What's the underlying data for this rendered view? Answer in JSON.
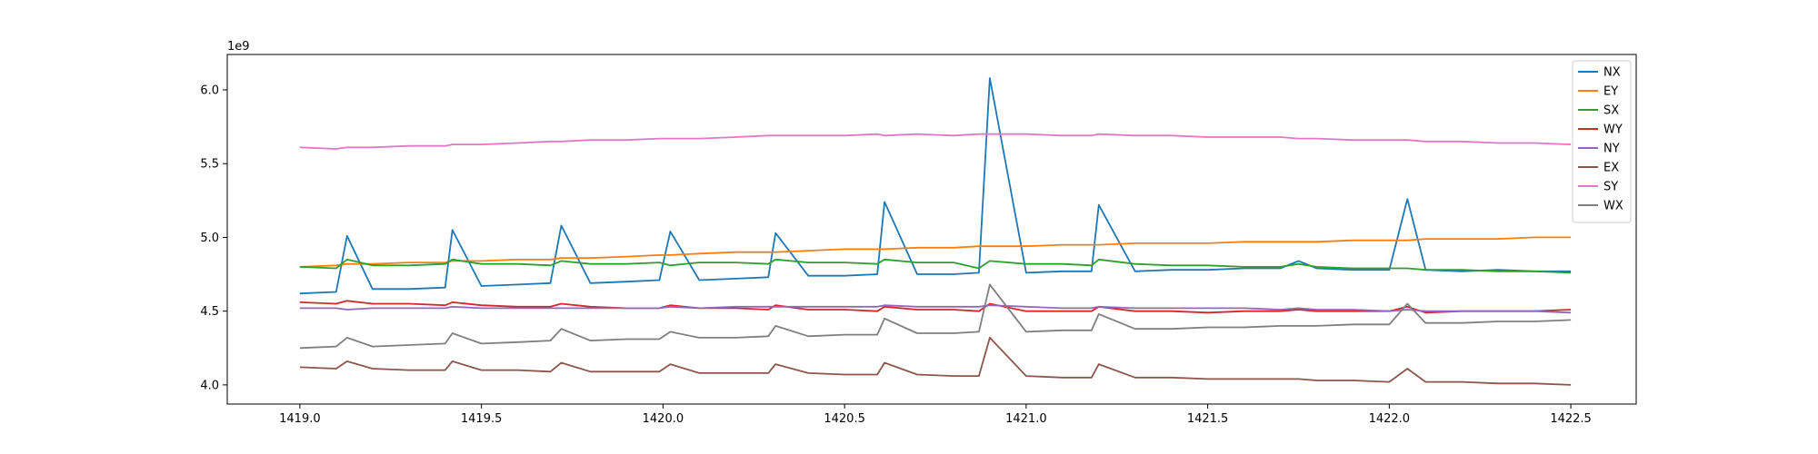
{
  "chart_data": {
    "type": "line",
    "title": "",
    "xlabel": "",
    "ylabel": "",
    "y_offset_label": "1e9",
    "xlim": [
      1418.8,
      1422.68
    ],
    "ylim": [
      3.87,
      6.24
    ],
    "grid": false,
    "legend_position": "top-right",
    "x_ticks": [
      "1419.0",
      "1419.5",
      "1420.0",
      "1420.5",
      "1421.0",
      "1421.5",
      "1422.0",
      "1422.5"
    ],
    "y_ticks": [
      "4.0",
      "4.5",
      "5.0",
      "5.5",
      "6.0"
    ],
    "x": [
      1419.0,
      1419.1,
      1419.13,
      1419.2,
      1419.3,
      1419.4,
      1419.42,
      1419.5,
      1419.6,
      1419.69,
      1419.72,
      1419.8,
      1419.9,
      1419.99,
      1420.02,
      1420.1,
      1420.2,
      1420.29,
      1420.31,
      1420.4,
      1420.5,
      1420.59,
      1420.61,
      1420.7,
      1420.8,
      1420.87,
      1420.9,
      1421.0,
      1421.1,
      1421.18,
      1421.2,
      1421.3,
      1421.4,
      1421.5,
      1421.6,
      1421.7,
      1421.75,
      1421.8,
      1421.9,
      1422.0,
      1422.05,
      1422.1,
      1422.2,
      1422.3,
      1422.4,
      1422.5
    ],
    "series": [
      {
        "name": "NX",
        "color": "#1f77b4",
        "values": [
          4.62,
          4.63,
          5.01,
          4.65,
          4.65,
          4.66,
          5.05,
          4.67,
          4.68,
          4.69,
          5.08,
          4.69,
          4.7,
          4.71,
          5.04,
          4.71,
          4.72,
          4.73,
          5.03,
          4.74,
          4.74,
          4.75,
          5.24,
          4.75,
          4.75,
          4.76,
          6.08,
          4.76,
          4.77,
          4.77,
          5.22,
          4.77,
          4.78,
          4.78,
          4.79,
          4.79,
          4.84,
          4.79,
          4.78,
          4.78,
          5.26,
          4.78,
          4.77,
          4.78,
          4.77,
          4.77
        ]
      },
      {
        "name": "EY",
        "color": "#ff7f0e",
        "values": [
          4.8,
          4.81,
          4.82,
          4.82,
          4.83,
          4.83,
          4.84,
          4.84,
          4.85,
          4.85,
          4.86,
          4.86,
          4.87,
          4.88,
          4.88,
          4.89,
          4.9,
          4.9,
          4.9,
          4.91,
          4.92,
          4.92,
          4.92,
          4.93,
          4.93,
          4.94,
          4.94,
          4.94,
          4.95,
          4.95,
          4.95,
          4.96,
          4.96,
          4.96,
          4.97,
          4.97,
          4.97,
          4.97,
          4.98,
          4.98,
          4.98,
          4.99,
          4.99,
          4.99,
          5.0,
          5.0
        ]
      },
      {
        "name": "SX",
        "color": "#2ca02c",
        "values": [
          4.8,
          4.79,
          4.85,
          4.81,
          4.81,
          4.82,
          4.85,
          4.82,
          4.82,
          4.81,
          4.84,
          4.82,
          4.82,
          4.83,
          4.81,
          4.83,
          4.83,
          4.82,
          4.85,
          4.83,
          4.83,
          4.82,
          4.85,
          4.83,
          4.83,
          4.79,
          4.84,
          4.82,
          4.82,
          4.81,
          4.85,
          4.82,
          4.81,
          4.81,
          4.8,
          4.8,
          4.82,
          4.8,
          4.79,
          4.79,
          4.79,
          4.78,
          4.78,
          4.77,
          4.77,
          4.76
        ]
      },
      {
        "name": "WY",
        "color": "#d62728",
        "values": [
          4.56,
          4.55,
          4.57,
          4.55,
          4.55,
          4.54,
          4.56,
          4.54,
          4.53,
          4.53,
          4.55,
          4.53,
          4.52,
          4.52,
          4.54,
          4.52,
          4.52,
          4.51,
          4.54,
          4.51,
          4.51,
          4.5,
          4.53,
          4.51,
          4.51,
          4.5,
          4.55,
          4.5,
          4.5,
          4.5,
          4.53,
          4.5,
          4.5,
          4.49,
          4.5,
          4.5,
          4.51,
          4.5,
          4.5,
          4.5,
          4.53,
          4.49,
          4.5,
          4.5,
          4.5,
          4.51
        ]
      },
      {
        "name": "NY",
        "color": "#9467bd",
        "values": [
          4.52,
          4.52,
          4.51,
          4.52,
          4.52,
          4.52,
          4.53,
          4.52,
          4.52,
          4.52,
          4.52,
          4.52,
          4.52,
          4.52,
          4.53,
          4.52,
          4.53,
          4.53,
          4.53,
          4.53,
          4.53,
          4.53,
          4.54,
          4.53,
          4.53,
          4.53,
          4.54,
          4.53,
          4.52,
          4.52,
          4.53,
          4.52,
          4.52,
          4.52,
          4.52,
          4.51,
          4.52,
          4.51,
          4.51,
          4.5,
          4.51,
          4.5,
          4.5,
          4.5,
          4.5,
          4.49
        ]
      },
      {
        "name": "EX",
        "color": "#8c564b",
        "values": [
          4.12,
          4.11,
          4.16,
          4.11,
          4.1,
          4.1,
          4.16,
          4.1,
          4.1,
          4.09,
          4.15,
          4.09,
          4.09,
          4.09,
          4.14,
          4.08,
          4.08,
          4.08,
          4.14,
          4.08,
          4.07,
          4.07,
          4.15,
          4.07,
          4.06,
          4.06,
          4.32,
          4.06,
          4.05,
          4.05,
          4.14,
          4.05,
          4.05,
          4.04,
          4.04,
          4.04,
          4.04,
          4.03,
          4.03,
          4.02,
          4.11,
          4.02,
          4.02,
          4.01,
          4.01,
          4.0
        ]
      },
      {
        "name": "SY",
        "color": "#e377c2",
        "values": [
          5.61,
          5.6,
          5.61,
          5.61,
          5.62,
          5.62,
          5.63,
          5.63,
          5.64,
          5.65,
          5.65,
          5.66,
          5.66,
          5.67,
          5.67,
          5.67,
          5.68,
          5.69,
          5.69,
          5.69,
          5.69,
          5.7,
          5.69,
          5.7,
          5.69,
          5.7,
          5.7,
          5.7,
          5.69,
          5.69,
          5.7,
          5.69,
          5.69,
          5.68,
          5.68,
          5.68,
          5.67,
          5.67,
          5.66,
          5.66,
          5.66,
          5.65,
          5.65,
          5.64,
          5.64,
          5.63
        ]
      },
      {
        "name": "WX",
        "color": "#7f7f7f",
        "values": [
          4.25,
          4.26,
          4.32,
          4.26,
          4.27,
          4.28,
          4.35,
          4.28,
          4.29,
          4.3,
          4.38,
          4.3,
          4.31,
          4.31,
          4.36,
          4.32,
          4.32,
          4.33,
          4.4,
          4.33,
          4.34,
          4.34,
          4.45,
          4.35,
          4.35,
          4.36,
          4.68,
          4.36,
          4.37,
          4.37,
          4.48,
          4.38,
          4.38,
          4.39,
          4.39,
          4.4,
          4.4,
          4.4,
          4.41,
          4.41,
          4.55,
          4.42,
          4.42,
          4.43,
          4.43,
          4.44
        ]
      }
    ]
  }
}
